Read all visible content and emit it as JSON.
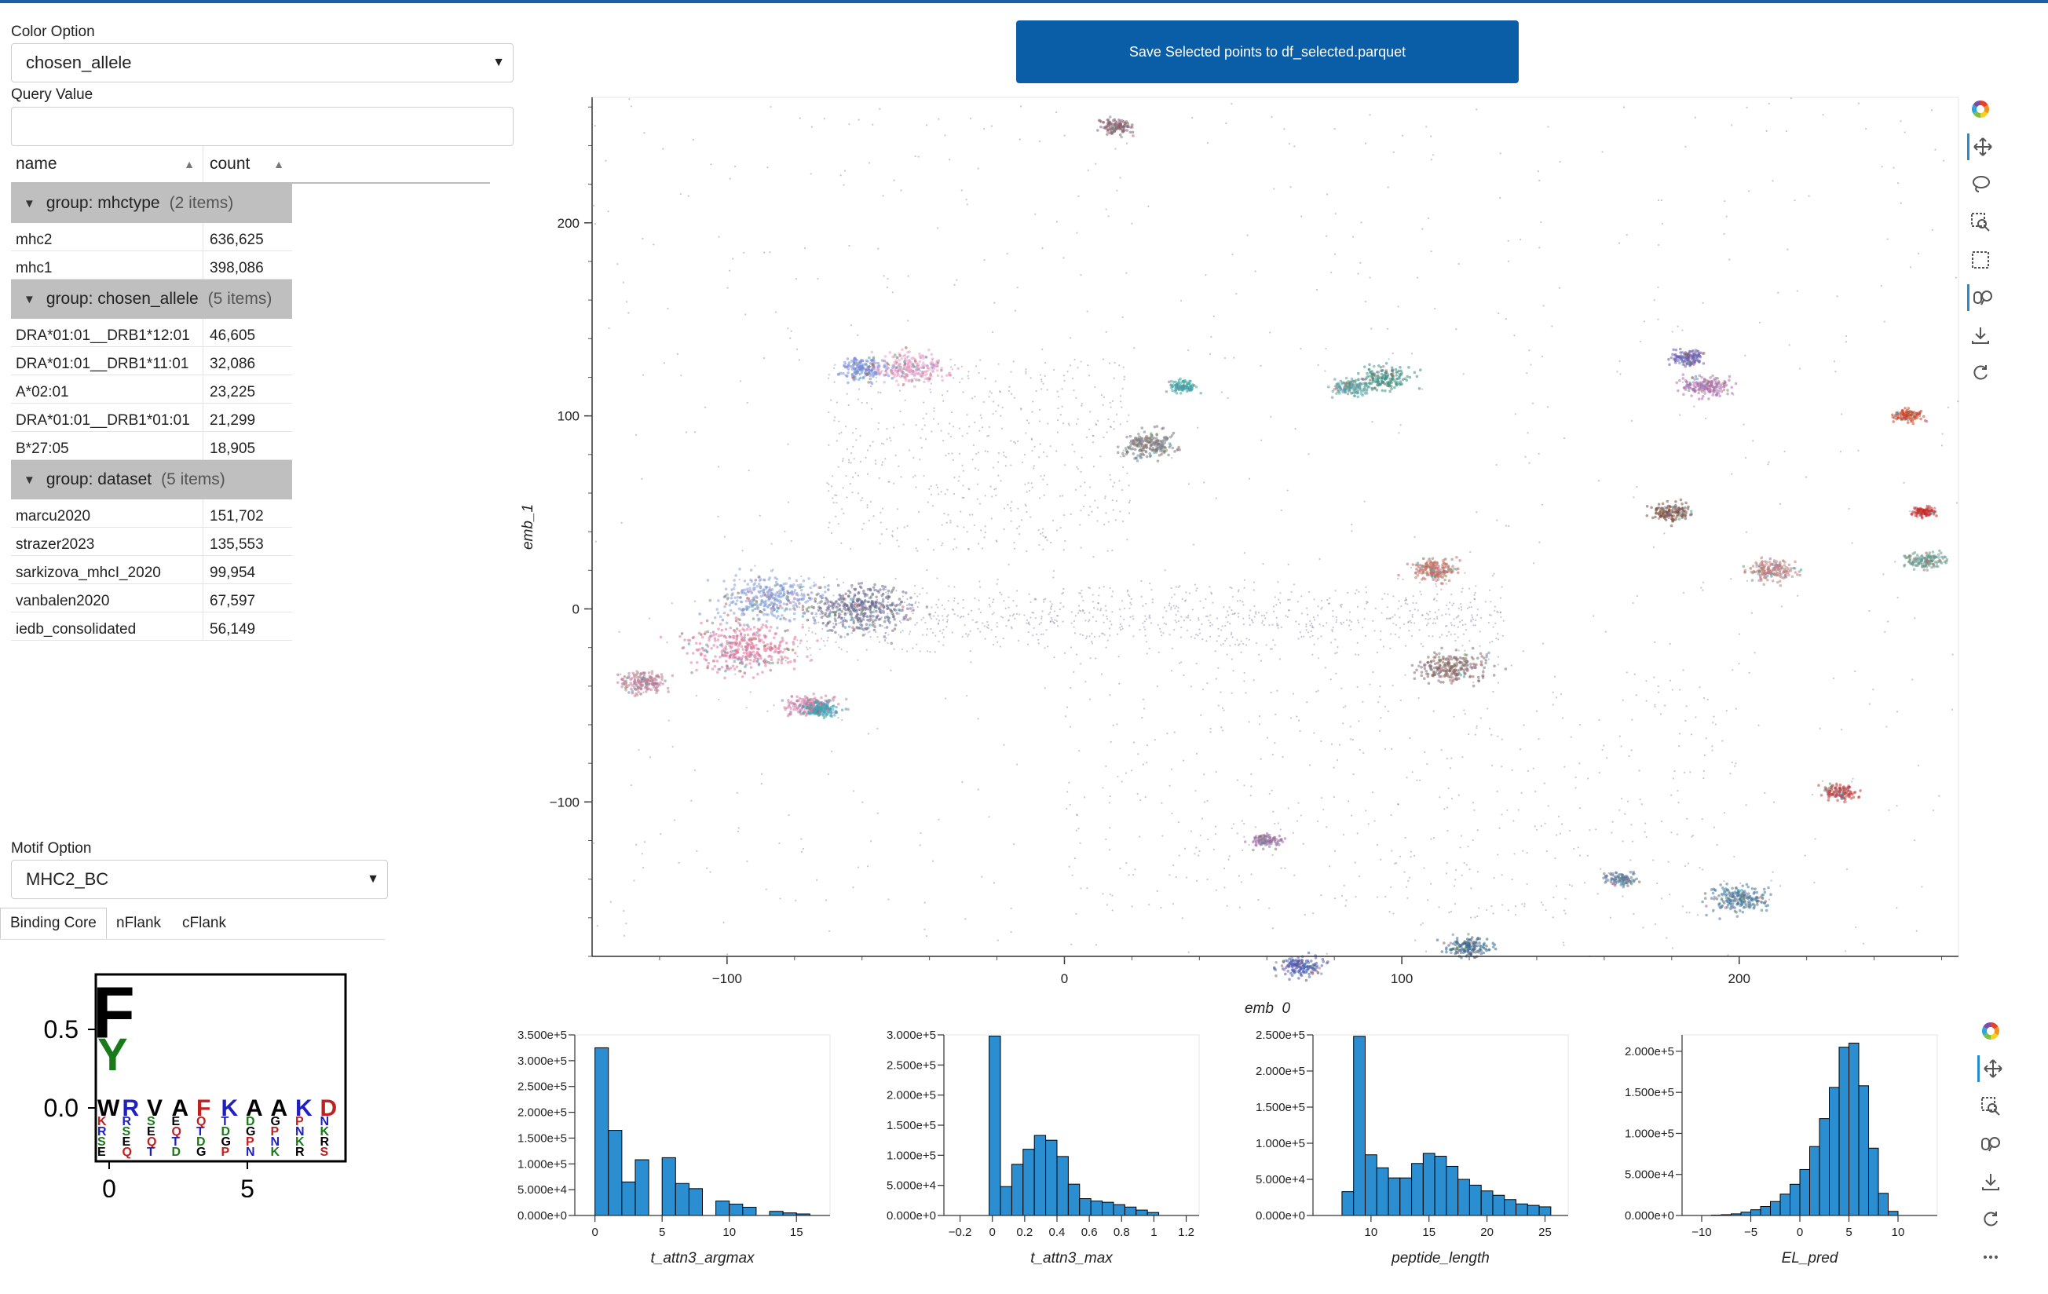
{
  "controls": {
    "color_option_label": "Color Option",
    "color_option_value": "chosen_allele",
    "query_value_label": "Query Value",
    "query_value": "",
    "motif_option_label": "Motif Option",
    "motif_option_value": "MHC2_BC",
    "save_button": "Save Selected points to df_selected.parquet"
  },
  "table": {
    "headers": [
      "name",
      "count"
    ],
    "groups": [
      {
        "label": "group: mhctype",
        "count": "(2 items)",
        "rows": [
          [
            "mhc2",
            "636,625"
          ],
          [
            "mhc1",
            "398,086"
          ]
        ]
      },
      {
        "label": "group: chosen_allele",
        "count": "(5 items)",
        "rows": [
          [
            "DRA*01:01__DRB1*12:01",
            "46,605"
          ],
          [
            "DRA*01:01__DRB1*11:01",
            "32,086"
          ],
          [
            "A*02:01",
            "23,225"
          ],
          [
            "DRA*01:01__DRB1*01:01",
            "21,299"
          ],
          [
            "B*27:05",
            "18,905"
          ]
        ]
      },
      {
        "label": "group: dataset",
        "count": "(5 items)",
        "rows": [
          [
            "marcu2020",
            "151,702"
          ],
          [
            "strazer2023",
            "135,553"
          ],
          [
            "sarkizova_mhcI_2020",
            "99,954"
          ],
          [
            "vanbalen2020",
            "67,597"
          ],
          [
            "iedb_consolidated",
            "56,149"
          ]
        ]
      }
    ]
  },
  "tabs": [
    "Binding Core",
    "nFlank",
    "cFlank"
  ],
  "logo": {
    "y_ticks": [
      "0.5",
      "0.0"
    ],
    "x_ticks": [
      "0",
      "5"
    ],
    "letters_top": [
      "F",
      "Y"
    ],
    "row_letters": [
      "W",
      "R",
      "V",
      "A",
      "F",
      "K",
      "A",
      "A",
      "K",
      "D"
    ]
  },
  "scatter": {
    "xlabel": "emb_0",
    "ylabel": "emb_1",
    "x_ticks": [
      "-100",
      "0",
      "100",
      "200"
    ],
    "y_ticks": [
      "200",
      "100",
      "0",
      "-100"
    ],
    "x_values": [
      -100,
      0,
      100,
      200
    ],
    "y_values": [
      200,
      100,
      0,
      -100
    ],
    "xlim": [
      -140,
      265
    ],
    "ylim": [
      -180,
      265
    ],
    "clusters": [
      {
        "x": -95,
        "y": -20,
        "r": 22,
        "color": "#e07aa0"
      },
      {
        "x": -88,
        "y": 5,
        "r": 20,
        "color": "#8aa0d8"
      },
      {
        "x": -60,
        "y": 0,
        "r": 22,
        "color": "#6a6a90"
      },
      {
        "x": -75,
        "y": -50,
        "r": 10,
        "color": "#d07ca8"
      },
      {
        "x": -72,
        "y": -52,
        "r": 7,
        "color": "#3aa4b8"
      },
      {
        "x": -125,
        "y": -38,
        "r": 10,
        "color": "#c0809a"
      },
      {
        "x": -60,
        "y": 125,
        "r": 10,
        "color": "#7a8ee0"
      },
      {
        "x": -45,
        "y": 125,
        "r": 14,
        "color": "#e6a0c8"
      },
      {
        "x": 15,
        "y": 250,
        "r": 7,
        "color": "#8a6070"
      },
      {
        "x": 25,
        "y": 85,
        "r": 12,
        "color": "#7a7a7a"
      },
      {
        "x": 35,
        "y": 115,
        "r": 6,
        "color": "#3aa8a8"
      },
      {
        "x": 95,
        "y": 120,
        "r": 10,
        "color": "#3a9080"
      },
      {
        "x": 85,
        "y": 115,
        "r": 8,
        "color": "#5aa0a0"
      },
      {
        "x": 110,
        "y": 20,
        "r": 10,
        "color": "#c07060"
      },
      {
        "x": 115,
        "y": -30,
        "r": 14,
        "color": "#8a6a6a"
      },
      {
        "x": 190,
        "y": 115,
        "r": 10,
        "color": "#b070b0"
      },
      {
        "x": 185,
        "y": 130,
        "r": 7,
        "color": "#6a5ab0"
      },
      {
        "x": 180,
        "y": 50,
        "r": 8,
        "color": "#7a5040"
      },
      {
        "x": 200,
        "y": -150,
        "r": 12,
        "color": "#4a7a9a"
      },
      {
        "x": 120,
        "y": -175,
        "r": 9,
        "color": "#3a6a8a"
      },
      {
        "x": 230,
        "y": -95,
        "r": 7,
        "color": "#c04040"
      },
      {
        "x": 250,
        "y": 100,
        "r": 6,
        "color": "#d04020"
      },
      {
        "x": 255,
        "y": 50,
        "r": 5,
        "color": "#d02020"
      },
      {
        "x": 255,
        "y": 25,
        "r": 8,
        "color": "#6a9a8a"
      },
      {
        "x": 210,
        "y": 20,
        "r": 10,
        "color": "#c08080"
      },
      {
        "x": 60,
        "y": -120,
        "r": 6,
        "color": "#9a70a0"
      },
      {
        "x": 70,
        "y": -185,
        "r": 9,
        "color": "#4a5ab0"
      },
      {
        "x": 165,
        "y": -140,
        "r": 6,
        "color": "#5a7a9a"
      }
    ]
  },
  "hist_data": [
    {
      "xlabel": "t_attn3_argmax",
      "y_ticks": [
        "3.500e+5",
        "3.000e+5",
        "2.500e+5",
        "2.000e+5",
        "1.500e+5",
        "1.000e+5",
        "5.000e+4",
        "0.000e+0"
      ],
      "x_ticks": [
        "0",
        "5",
        "10",
        "15"
      ],
      "x_tick_values": [
        0,
        5,
        10,
        15
      ],
      "xlim": [
        -1.5,
        17.5
      ],
      "ymax": 350000,
      "edges": [
        0,
        1,
        2,
        3,
        4,
        5,
        6,
        7,
        8,
        9,
        10,
        11,
        12,
        13,
        14,
        15,
        16
      ],
      "values": [
        325000,
        165000,
        65000,
        108000,
        0,
        112000,
        62000,
        52000,
        0,
        28000,
        22000,
        16000,
        0,
        8000,
        5000,
        3000
      ]
    },
    {
      "xlabel": "t_attn3_max",
      "y_ticks": [
        "3.000e+5",
        "2.500e+5",
        "2.000e+5",
        "1.500e+5",
        "1.000e+5",
        "5.000e+4",
        "0.000e+0"
      ],
      "x_ticks": [
        "-0.2",
        "0",
        "0.2",
        "0.4",
        "0.6",
        "0.8",
        "1",
        "1.2"
      ],
      "x_tick_values": [
        -0.2,
        0,
        0.2,
        0.4,
        0.6,
        0.8,
        1,
        1.2
      ],
      "xlim": [
        -0.3,
        1.28
      ],
      "ymax": 300000,
      "edges": [
        -0.02,
        0.05,
        0.12,
        0.19,
        0.26,
        0.33,
        0.4,
        0.47,
        0.54,
        0.61,
        0.68,
        0.75,
        0.82,
        0.89,
        0.96,
        1.03
      ],
      "values": [
        298000,
        48000,
        85000,
        110000,
        133000,
        125000,
        98000,
        52000,
        28000,
        24000,
        22000,
        18000,
        14000,
        9000,
        5000
      ]
    },
    {
      "xlabel": "peptide_length",
      "y_ticks": [
        "2.500e+5",
        "2.000e+5",
        "1.500e+5",
        "1.000e+5",
        "5.000e+4",
        "0.000e+0"
      ],
      "x_ticks": [
        "10",
        "15",
        "20",
        "25"
      ],
      "x_tick_values": [
        10,
        15,
        20,
        25
      ],
      "xlim": [
        5,
        27
      ],
      "ymax": 250000,
      "edges": [
        7.5,
        8.5,
        9.5,
        10.5,
        11.5,
        12.5,
        13.5,
        14.5,
        15.5,
        16.5,
        17.5,
        18.5,
        19.5,
        20.5,
        21.5,
        22.5,
        23.5,
        24.5,
        25.5
      ],
      "values": [
        33000,
        248000,
        84000,
        66000,
        52000,
        52000,
        72000,
        86000,
        82000,
        68000,
        50000,
        42000,
        34000,
        28000,
        22000,
        16000,
        14000,
        12000
      ]
    },
    {
      "xlabel": "EL_pred",
      "y_ticks": [
        "2.000e+5",
        "1.500e+5",
        "1.000e+5",
        "5.000e+4",
        "0.000e+0"
      ],
      "x_ticks": [
        "-10",
        "-5",
        "0",
        "5",
        "10"
      ],
      "x_tick_values": [
        -10,
        -5,
        0,
        5,
        10
      ],
      "xlim": [
        -12,
        14
      ],
      "ymax": 220000,
      "edges": [
        -9,
        -8,
        -7,
        -6,
        -5,
        -4,
        -3,
        -2,
        -1,
        0,
        1,
        2,
        3,
        4,
        5,
        6,
        7,
        8,
        9,
        10
      ],
      "values": [
        500,
        1000,
        2000,
        4000,
        7000,
        11000,
        17000,
        26000,
        38000,
        56000,
        84000,
        118000,
        156000,
        205000,
        210000,
        158000,
        82000,
        27000,
        5000
      ]
    }
  ]
}
